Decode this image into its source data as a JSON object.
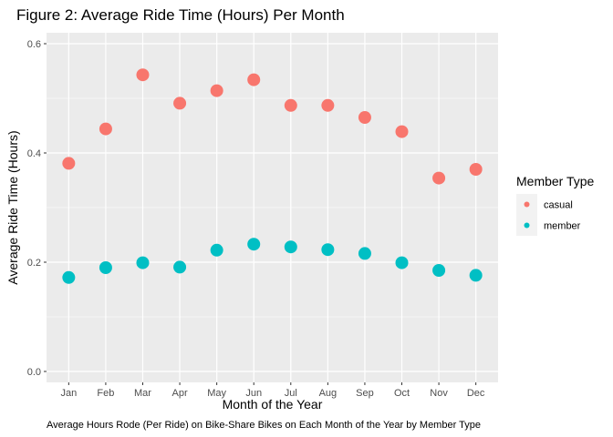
{
  "chart_data": {
    "type": "scatter",
    "title": "Figure 2: Average Ride Time (Hours) Per Month",
    "xlabel": "Month of the Year",
    "ylabel": "Average Ride Time (Hours)",
    "caption": "Average Hours Rode (Per Ride) on Bike-Share Bikes on Each Month of the Year by Member Type",
    "categories": [
      "Jan",
      "Feb",
      "Mar",
      "Apr",
      "May",
      "Jun",
      "Jul",
      "Aug",
      "Sep",
      "Oct",
      "Nov",
      "Dec"
    ],
    "ylim": [
      -0.02,
      0.62
    ],
    "yticks": [
      0.0,
      0.2,
      0.4,
      0.6
    ],
    "ytick_labels": [
      "0.0",
      "0.2",
      "0.4",
      "0.6"
    ],
    "grid": true,
    "legend": {
      "title": "Member Type",
      "position": "right"
    },
    "series": [
      {
        "name": "casual",
        "color": "#F8766D",
        "values": [
          0.381,
          0.444,
          0.543,
          0.491,
          0.514,
          0.534,
          0.487,
          0.487,
          0.465,
          0.439,
          0.354,
          0.37
        ]
      },
      {
        "name": "member",
        "color": "#00BFC4",
        "values": [
          0.172,
          0.19,
          0.199,
          0.191,
          0.222,
          0.233,
          0.228,
          0.223,
          0.216,
          0.199,
          0.185,
          0.176
        ]
      }
    ]
  }
}
